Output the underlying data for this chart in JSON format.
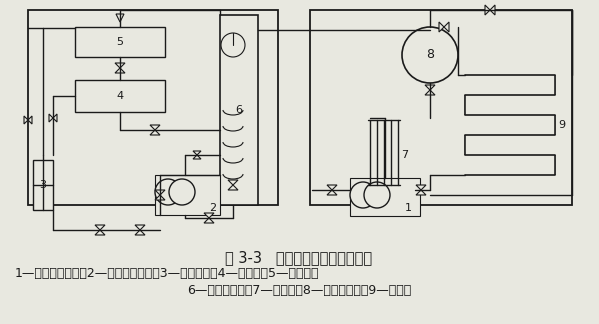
{
  "title": "图 3-3   双级压缩制冷系统原理图",
  "caption_line1": "1—低压级压缩机；2—高压级压缩机；3—油分离器；4—贮液器；5—冷凝器；",
  "caption_line2": "6—中间冷却器；7—分配站；8—氨液分离器；9—蒸发器",
  "bg_color": "#e8e8e0",
  "line_color": "#1a1a1a",
  "title_fontsize": 10.5,
  "caption_fontsize": 9.0
}
